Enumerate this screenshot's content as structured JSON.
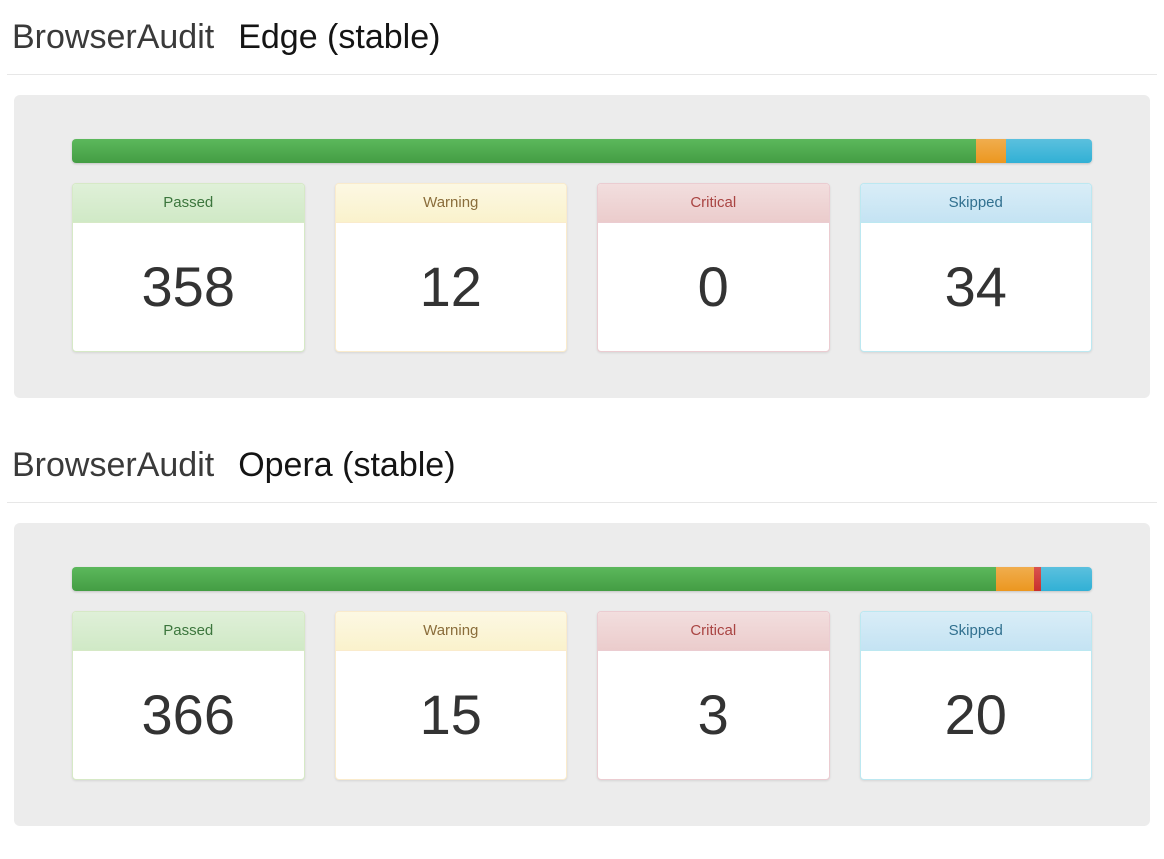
{
  "colors": {
    "passed": "#5cb85c",
    "warning": "#f0ad4e",
    "critical": "#d9534f",
    "skipped": "#5bc0de",
    "well_background": "#ececec",
    "number_text": "#333333"
  },
  "sections": [
    {
      "brand": "BrowserAudit",
      "browser": "Edge (stable)",
      "total": 404,
      "stats": [
        {
          "id": "passed",
          "label": "Passed",
          "value": 358
        },
        {
          "id": "warning",
          "label": "Warning",
          "value": 12
        },
        {
          "id": "critical",
          "label": "Critical",
          "value": 0
        },
        {
          "id": "skipped",
          "label": "Skipped",
          "value": 34
        }
      ]
    },
    {
      "brand": "BrowserAudit",
      "browser": "Opera (stable)",
      "total": 404,
      "stats": [
        {
          "id": "passed",
          "label": "Passed",
          "value": 366
        },
        {
          "id": "warning",
          "label": "Warning",
          "value": 15
        },
        {
          "id": "critical",
          "label": "Critical",
          "value": 3
        },
        {
          "id": "skipped",
          "label": "Skipped",
          "value": 20
        }
      ]
    }
  ]
}
